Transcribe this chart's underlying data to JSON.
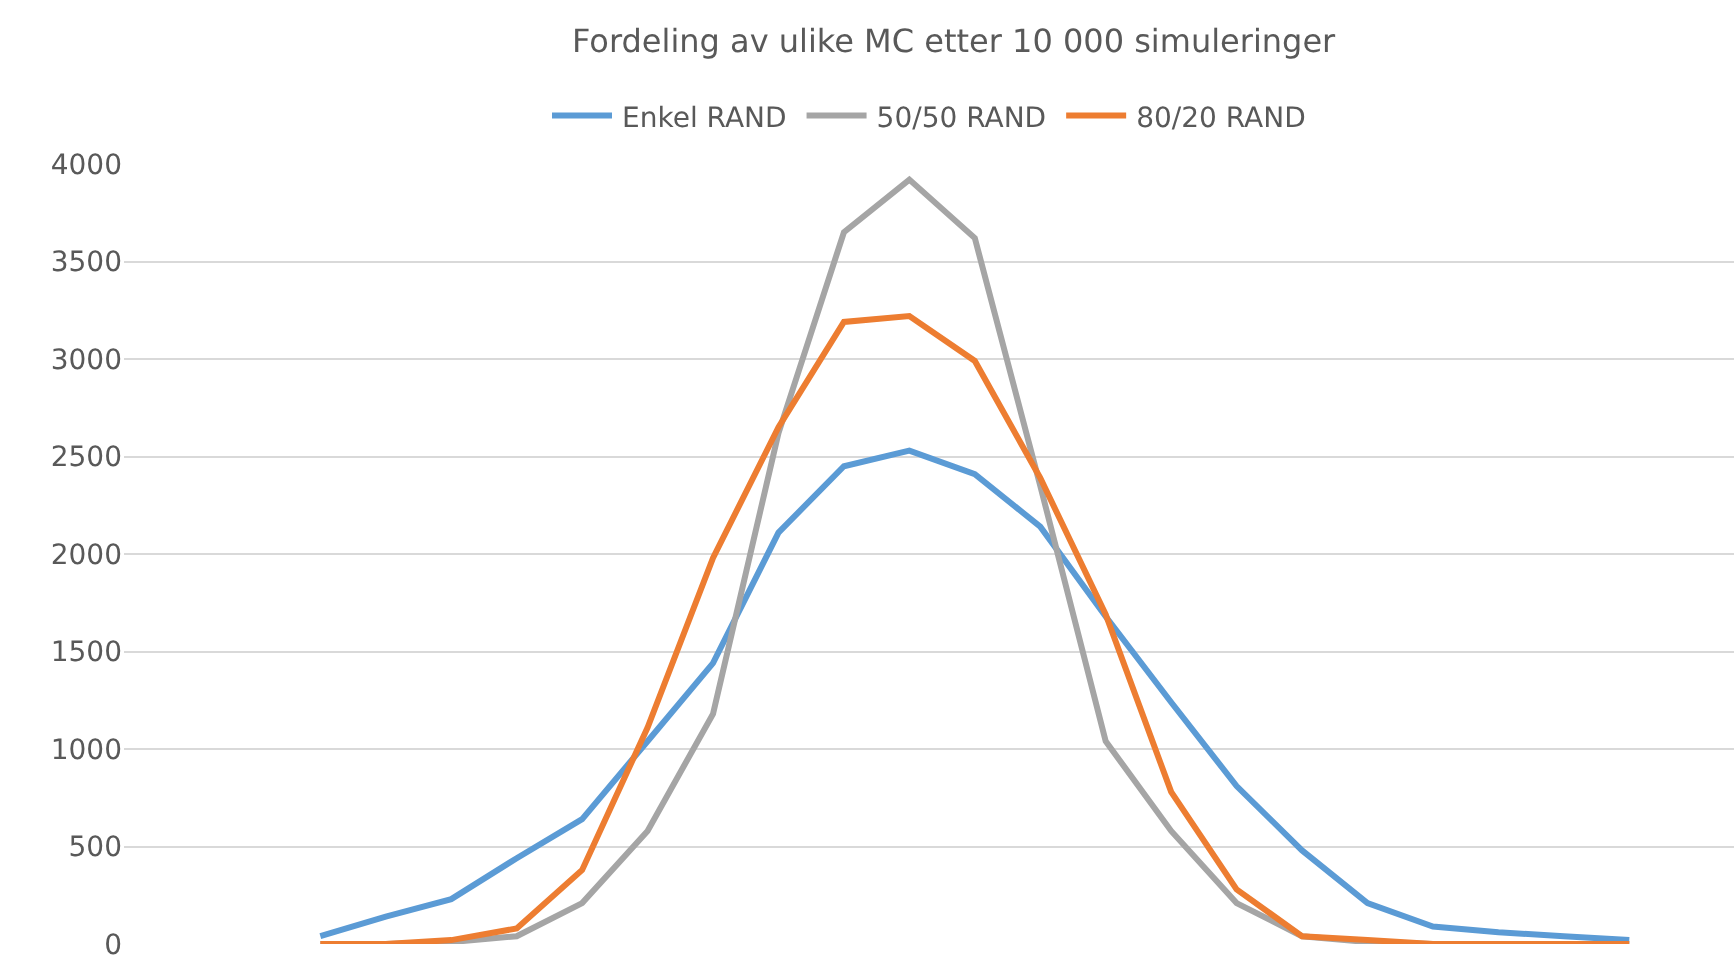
{
  "chart_data": {
    "type": "line",
    "title": "Fordeling av ulike MC etter 10 000 simuleringer",
    "categories": [
      null,
      null,
      null,
      null,
      null,
      null,
      null,
      null,
      null,
      null,
      null,
      null,
      null,
      null,
      null,
      null,
      null,
      null,
      null,
      null,
      null
    ],
    "series": [
      {
        "name": "Enkel RAND",
        "color": "#5b9bd5",
        "values": [
          40,
          140,
          230,
          440,
          640,
          1040,
          1440,
          2110,
          2450,
          2530,
          2410,
          2140,
          1680,
          1240,
          810,
          480,
          210,
          90,
          60,
          40,
          20
        ]
      },
      {
        "name": "50/50 RAND",
        "color": "#a5a5a5",
        "values": [
          0,
          0,
          10,
          40,
          210,
          580,
          1180,
          2620,
          3650,
          3920,
          3620,
          2350,
          1040,
          580,
          210,
          40,
          10,
          0,
          0,
          0,
          0
        ]
      },
      {
        "name": "80/20 RAND",
        "color": "#ed7d31",
        "values": [
          0,
          0,
          20,
          80,
          380,
          1110,
          1980,
          2650,
          3190,
          3220,
          2990,
          2390,
          1690,
          780,
          280,
          40,
          20,
          0,
          0,
          0,
          0
        ]
      }
    ],
    "ylim": [
      0,
      4000
    ],
    "yticks": [
      0,
      500,
      1000,
      1500,
      2000,
      2500,
      3000,
      3500,
      4000
    ],
    "tick_labels": "y",
    "grid": "y",
    "legend": "top",
    "marker": "none",
    "line_style": "solid"
  }
}
